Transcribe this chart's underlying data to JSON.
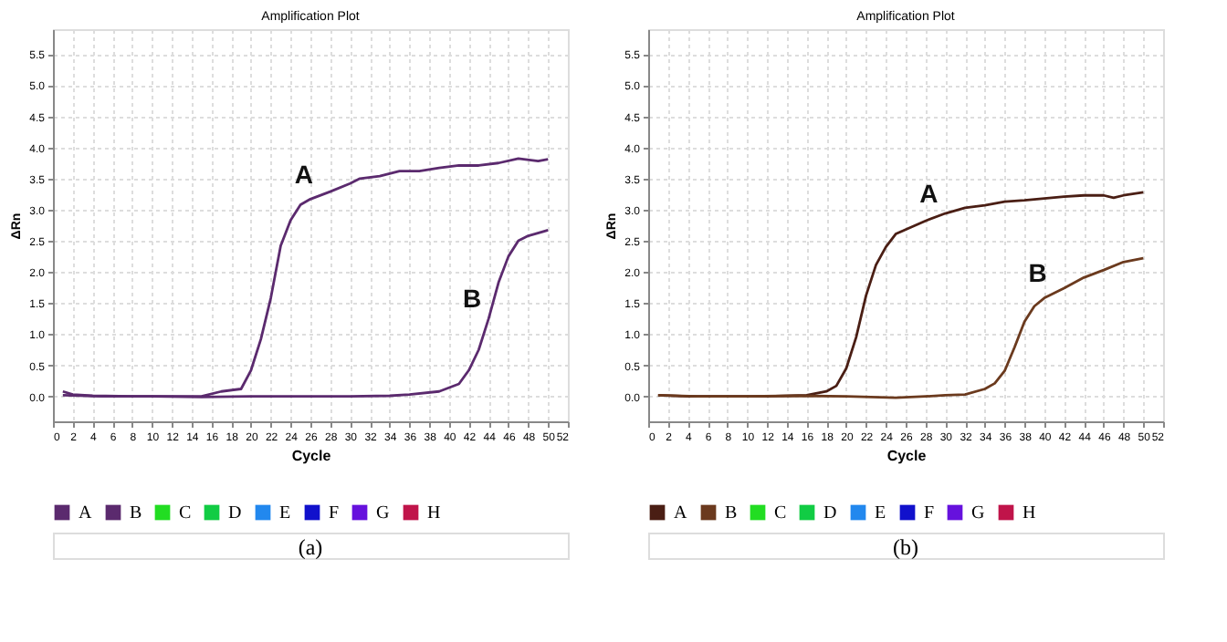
{
  "chart_data": [
    {
      "type": "line",
      "title": "Amplification Plot",
      "xlabel": "Cycle",
      "ylabel": "ΔRn",
      "xlim": [
        0,
        52
      ],
      "ylim": [
        -0.4,
        5.9
      ],
      "xticks": [
        0,
        2,
        4,
        6,
        8,
        10,
        12,
        14,
        16,
        18,
        20,
        22,
        24,
        26,
        28,
        30,
        32,
        34,
        36,
        38,
        40,
        42,
        44,
        46,
        48,
        50,
        52
      ],
      "yticks": [
        {
          "value": 0,
          "label": "0.0"
        },
        {
          "value": 0.5,
          "label": "0.5"
        },
        {
          "value": 1,
          "label": "1.0"
        },
        {
          "value": 1.5,
          "label": "1.5"
        },
        {
          "value": 2,
          "label": "2.0"
        },
        {
          "value": 2.5,
          "label": "2.5"
        },
        {
          "value": 3,
          "label": "3.0"
        },
        {
          "value": 3.5,
          "label": "3.5"
        },
        {
          "value": 4,
          "label": "4.0"
        },
        {
          "value": 4.5,
          "label": "4.5"
        },
        {
          "value": 5,
          "label": "5.0"
        },
        {
          "value": 5.5,
          "label": "5.5"
        }
      ],
      "grid": true,
      "legend": "bottom",
      "marker": "none",
      "line_style": "solid",
      "series": [
        {
          "name": "A",
          "color": "#5b2a6e",
          "x": [
            1,
            2,
            4,
            8,
            12,
            15,
            17,
            19,
            20,
            21,
            22,
            23,
            24,
            25,
            26,
            28,
            30,
            31,
            33,
            35,
            37,
            39,
            41,
            43,
            45,
            47,
            49,
            50
          ],
          "values": [
            0.08,
            0.03,
            0.01,
            0,
            0,
            0,
            0.08,
            0.12,
            0.42,
            0.92,
            1.58,
            2.42,
            2.83,
            3.08,
            3.17,
            3.29,
            3.42,
            3.5,
            3.54,
            3.62,
            3.62,
            3.67,
            3.71,
            3.71,
            3.75,
            3.82,
            3.78,
            3.81
          ]
        },
        {
          "name": "B",
          "color": "#5b2a6e",
          "x": [
            1,
            5,
            10,
            15,
            20,
            25,
            30,
            34,
            36,
            39,
            41,
            42,
            43,
            44,
            45,
            46,
            47,
            48,
            50
          ],
          "values": [
            0.02,
            0,
            0,
            -0.01,
            0,
            0,
            0,
            0.01,
            0.03,
            0.08,
            0.2,
            0.42,
            0.75,
            1.25,
            1.83,
            2.25,
            2.5,
            2.58,
            2.67
          ]
        },
        {
          "name": "C",
          "color": "#22dd22"
        },
        {
          "name": "D",
          "color": "#11cc44"
        },
        {
          "name": "E",
          "color": "#2288ee"
        },
        {
          "name": "F",
          "color": "#1111cc"
        },
        {
          "name": "G",
          "color": "#6611dd"
        },
        {
          "name": "H",
          "color": "#c0144a"
        }
      ],
      "annotations": [
        {
          "text": "A",
          "x": 27,
          "y": 3.25
        },
        {
          "text": "B",
          "x": 44,
          "y": 1.25
        },
        "(a)"
      ]
    },
    {
      "type": "line",
      "title": "Amplification Plot",
      "xlabel": "Cycle",
      "ylabel": "ΔRn",
      "xlim": [
        0,
        52
      ],
      "ylim": [
        -0.4,
        5.9
      ],
      "xticks": [
        0,
        2,
        4,
        6,
        8,
        10,
        12,
        14,
        16,
        18,
        20,
        22,
        24,
        26,
        28,
        30,
        32,
        34,
        36,
        38,
        40,
        42,
        44,
        46,
        48,
        50,
        52
      ],
      "yticks": [
        {
          "value": 0,
          "label": "0.0"
        },
        {
          "value": 0.5,
          "label": "0.5"
        },
        {
          "value": 1,
          "label": "1.0"
        },
        {
          "value": 1.5,
          "label": "1.5"
        },
        {
          "value": 2,
          "label": "2.0"
        },
        {
          "value": 2.5,
          "label": "2.5"
        },
        {
          "value": 3,
          "label": "3.0"
        },
        {
          "value": 3.5,
          "label": "3.5"
        },
        {
          "value": 4,
          "label": "4.0"
        },
        {
          "value": 4.5,
          "label": "4.5"
        },
        {
          "value": 5,
          "label": "5.0"
        },
        {
          "value": 5.5,
          "label": "5.5"
        }
      ],
      "grid": true,
      "legend": "bottom",
      "marker": "none",
      "line_style": "solid",
      "series": [
        {
          "name": "A",
          "color": "#4a1e14",
          "x": [
            1,
            4,
            8,
            12,
            16,
            18,
            19,
            20,
            21,
            22,
            23,
            24,
            25,
            26,
            28,
            30,
            32,
            34,
            36,
            38,
            40,
            42,
            44,
            46,
            47,
            48,
            50
          ],
          "values": [
            0.02,
            0,
            0,
            0,
            0.02,
            0.08,
            0.17,
            0.45,
            0.95,
            1.62,
            2.11,
            2.4,
            2.61,
            2.68,
            2.82,
            2.94,
            3.03,
            3.07,
            3.13,
            3.15,
            3.18,
            3.21,
            3.23,
            3.23,
            3.19,
            3.23,
            3.28
          ]
        },
        {
          "name": "B",
          "color": "#6b3a1e",
          "x": [
            1,
            5,
            10,
            15,
            20,
            25,
            28,
            30,
            32,
            34,
            35,
            36,
            37,
            38,
            39,
            40,
            42,
            44,
            46,
            48,
            50
          ],
          "values": [
            0.02,
            0,
            0,
            0.01,
            0,
            -0.02,
            0,
            0.02,
            0.03,
            0.12,
            0.21,
            0.41,
            0.79,
            1.2,
            1.45,
            1.58,
            1.74,
            1.91,
            2.03,
            2.16,
            2.22
          ]
        },
        {
          "name": "C",
          "color": "#22dd22"
        },
        {
          "name": "D",
          "color": "#11cc44"
        },
        {
          "name": "E",
          "color": "#2288ee"
        },
        {
          "name": "F",
          "color": "#1111cc"
        },
        {
          "name": "G",
          "color": "#6611dd"
        },
        {
          "name": "H",
          "color": "#c0144a"
        }
      ],
      "annotations": [
        {
          "text": "A",
          "x": 30,
          "y": 2.94
        },
        {
          "text": "B",
          "x": 41,
          "y": 1.66
        },
        "(b)"
      ]
    }
  ]
}
